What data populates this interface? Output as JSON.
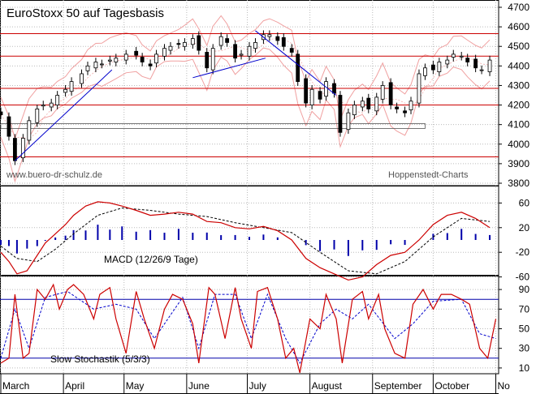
{
  "chart_data": [
    {
      "type": "line",
      "title": "EuroStoxx 50 auf Tagesbasis",
      "watermark_left": "www.buero-dr-schulz.de",
      "watermark_right": "Hoppenstedt-Charts",
      "ylim": [
        3800,
        4700
      ],
      "yticks": [
        "4700",
        "4600",
        "4500",
        "4400",
        "4300",
        "4200",
        "4100",
        "4000",
        "3900",
        "3800"
      ],
      "ytick_values": [
        4700,
        4600,
        4500,
        4400,
        4300,
        4200,
        4100,
        4000,
        3900,
        3800
      ],
      "horizontal_lines": [
        4565,
        4450,
        4285,
        4200,
        3935
      ],
      "trendlines": [
        {
          "from": [
            "2007-03-08",
            3915
          ],
          "to": [
            "2007-04-25",
            4380
          ]
        },
        {
          "from": [
            "2007-06-04",
            4340
          ],
          "to": [
            "2007-07-10",
            4440
          ]
        },
        {
          "from": [
            "2007-07-05",
            4580
          ],
          "to": [
            "2007-08-14",
            4250
          ]
        }
      ],
      "close_series": [
        [
          "2007-03-01",
          4150
        ],
        [
          "2007-03-05",
          4040
        ],
        [
          "2007-03-08",
          3915
        ],
        [
          "2007-03-12",
          4030
        ],
        [
          "2007-03-15",
          4120
        ],
        [
          "2007-03-19",
          4180
        ],
        [
          "2007-03-22",
          4200
        ],
        [
          "2007-03-26",
          4210
        ],
        [
          "2007-03-29",
          4250
        ],
        [
          "2007-04-02",
          4280
        ],
        [
          "2007-04-05",
          4320
        ],
        [
          "2007-04-10",
          4360
        ],
        [
          "2007-04-13",
          4400
        ],
        [
          "2007-04-17",
          4420
        ],
        [
          "2007-04-20",
          4410
        ],
        [
          "2007-04-24",
          4430
        ],
        [
          "2007-04-27",
          4440
        ],
        [
          "2007-05-02",
          4460
        ],
        [
          "2007-05-07",
          4455
        ],
        [
          "2007-05-10",
          4420
        ],
        [
          "2007-05-14",
          4400
        ],
        [
          "2007-05-17",
          4460
        ],
        [
          "2007-05-21",
          4490
        ],
        [
          "2007-05-24",
          4500
        ],
        [
          "2007-05-28",
          4510
        ],
        [
          "2007-05-31",
          4520
        ],
        [
          "2007-06-04",
          4540
        ],
        [
          "2007-06-07",
          4480
        ],
        [
          "2007-06-11",
          4390
        ],
        [
          "2007-06-14",
          4490
        ],
        [
          "2007-06-18",
          4550
        ],
        [
          "2007-06-21",
          4520
        ],
        [
          "2007-06-25",
          4440
        ],
        [
          "2007-06-28",
          4460
        ],
        [
          "2007-07-02",
          4500
        ],
        [
          "2007-07-05",
          4520
        ],
        [
          "2007-07-09",
          4560
        ],
        [
          "2007-07-12",
          4560
        ],
        [
          "2007-07-16",
          4530
        ],
        [
          "2007-07-19",
          4500
        ],
        [
          "2007-07-23",
          4470
        ],
        [
          "2007-07-26",
          4320
        ],
        [
          "2007-07-30",
          4210
        ],
        [
          "2007-08-02",
          4280
        ],
        [
          "2007-08-06",
          4230
        ],
        [
          "2007-08-09",
          4320
        ],
        [
          "2007-08-13",
          4260
        ],
        [
          "2007-08-16",
          4060
        ],
        [
          "2007-08-20",
          4160
        ],
        [
          "2007-08-23",
          4200
        ],
        [
          "2007-08-27",
          4220
        ],
        [
          "2007-08-30",
          4180
        ],
        [
          "2007-09-03",
          4240
        ],
        [
          "2007-09-06",
          4300
        ],
        [
          "2007-09-10",
          4200
        ],
        [
          "2007-09-13",
          4180
        ],
        [
          "2007-09-17",
          4160
        ],
        [
          "2007-09-20",
          4220
        ],
        [
          "2007-09-24",
          4360
        ],
        [
          "2007-09-27",
          4390
        ],
        [
          "2007-10-01",
          4380
        ],
        [
          "2007-10-04",
          4420
        ],
        [
          "2007-10-08",
          4430
        ],
        [
          "2007-10-11",
          4460
        ],
        [
          "2007-10-15",
          4450
        ],
        [
          "2007-10-18",
          4420
        ],
        [
          "2007-10-22",
          4390
        ],
        [
          "2007-10-25",
          4380
        ],
        [
          "2007-10-29",
          4430
        ]
      ]
    },
    {
      "type": "line",
      "title": "MACD (12/26/9 Tage)",
      "ylim": [
        -90,
        90
      ],
      "yticks": [
        "60",
        "20",
        "-20",
        "-60"
      ],
      "ytick_values": [
        60,
        20,
        -20,
        -60
      ],
      "series": [
        {
          "values": [
            [
              "2007-03-01",
              -20
            ],
            [
              "2007-03-05",
              -35
            ],
            [
              "2007-03-09",
              -55
            ],
            [
              "2007-03-14",
              -50
            ],
            [
              "2007-03-19",
              -25
            ],
            [
              "2007-03-23",
              -5
            ],
            [
              "2007-03-28",
              10
            ],
            [
              "2007-04-02",
              25
            ],
            [
              "2007-04-06",
              40
            ],
            [
              "2007-04-12",
              55
            ],
            [
              "2007-04-18",
              62
            ],
            [
              "2007-04-24",
              60
            ],
            [
              "2007-04-30",
              55
            ],
            [
              "2007-05-07",
              48
            ],
            [
              "2007-05-14",
              40
            ],
            [
              "2007-05-21",
              42
            ],
            [
              "2007-05-28",
              45
            ],
            [
              "2007-06-04",
              42
            ],
            [
              "2007-06-11",
              30
            ],
            [
              "2007-06-18",
              28
            ],
            [
              "2007-06-25",
              20
            ],
            [
              "2007-07-02",
              18
            ],
            [
              "2007-07-09",
              22
            ],
            [
              "2007-07-16",
              15
            ],
            [
              "2007-07-23",
              0
            ],
            [
              "2007-07-30",
              -30
            ],
            [
              "2007-08-06",
              -45
            ],
            [
              "2007-08-13",
              -55
            ],
            [
              "2007-08-20",
              -65
            ],
            [
              "2007-08-27",
              -60
            ],
            [
              "2007-09-03",
              -40
            ],
            [
              "2007-09-10",
              -25
            ],
            [
              "2007-09-17",
              -20
            ],
            [
              "2007-09-24",
              0
            ],
            [
              "2007-10-01",
              25
            ],
            [
              "2007-10-08",
              40
            ],
            [
              "2007-10-15",
              45
            ],
            [
              "2007-10-22",
              35
            ],
            [
              "2007-10-29",
              20
            ]
          ]
        },
        {
          "values": [
            [
              "2007-03-01",
              -10
            ],
            [
              "2007-03-09",
              -30
            ],
            [
              "2007-03-19",
              -35
            ],
            [
              "2007-03-28",
              -15
            ],
            [
              "2007-04-06",
              10
            ],
            [
              "2007-04-18",
              40
            ],
            [
              "2007-04-30",
              52
            ],
            [
              "2007-05-14",
              48
            ],
            [
              "2007-05-28",
              42
            ],
            [
              "2007-06-11",
              38
            ],
            [
              "2007-06-25",
              28
            ],
            [
              "2007-07-09",
              20
            ],
            [
              "2007-07-23",
              12
            ],
            [
              "2007-08-06",
              -20
            ],
            [
              "2007-08-20",
              -50
            ],
            [
              "2007-09-03",
              -55
            ],
            [
              "2007-09-17",
              -35
            ],
            [
              "2007-10-01",
              5
            ],
            [
              "2007-10-15",
              35
            ],
            [
              "2007-10-29",
              30
            ]
          ]
        }
      ]
    },
    {
      "type": "line",
      "title": "Slow Stochastik (5/3/3)",
      "ylim": [
        0,
        100
      ],
      "yticks": [
        "90",
        "70",
        "50",
        "30",
        "10"
      ],
      "ytick_values": [
        90,
        70,
        50,
        30,
        10
      ],
      "horizontal_lines": [
        80,
        20
      ],
      "series": [
        {
          "values": [
            [
              "2007-03-01",
              15
            ],
            [
              "2007-03-05",
              20
            ],
            [
              "2007-03-08",
              85
            ],
            [
              "2007-03-12",
              20
            ],
            [
              "2007-03-15",
              25
            ],
            [
              "2007-03-19",
              90
            ],
            [
              "2007-03-23",
              80
            ],
            [
              "2007-03-27",
              95
            ],
            [
              "2007-03-30",
              70
            ],
            [
              "2007-04-03",
              90
            ],
            [
              "2007-04-06",
              95
            ],
            [
              "2007-04-11",
              85
            ],
            [
              "2007-04-16",
              60
            ],
            [
              "2007-04-19",
              85
            ],
            [
              "2007-04-24",
              92
            ],
            [
              "2007-04-27",
              60
            ],
            [
              "2007-05-02",
              25
            ],
            [
              "2007-05-07",
              88
            ],
            [
              "2007-05-11",
              60
            ],
            [
              "2007-05-16",
              30
            ],
            [
              "2007-05-21",
              70
            ],
            [
              "2007-05-25",
              85
            ],
            [
              "2007-05-30",
              80
            ],
            [
              "2007-06-04",
              55
            ],
            [
              "2007-06-07",
              15
            ],
            [
              "2007-06-12",
              92
            ],
            [
              "2007-06-15",
              85
            ],
            [
              "2007-06-20",
              40
            ],
            [
              "2007-06-25",
              92
            ],
            [
              "2007-06-28",
              60
            ],
            [
              "2007-07-03",
              30
            ],
            [
              "2007-07-06",
              88
            ],
            [
              "2007-07-11",
              92
            ],
            [
              "2007-07-16",
              60
            ],
            [
              "2007-07-20",
              20
            ],
            [
              "2007-07-24",
              30
            ],
            [
              "2007-07-27",
              5
            ],
            [
              "2007-08-01",
              60
            ],
            [
              "2007-08-06",
              50
            ],
            [
              "2007-08-09",
              85
            ],
            [
              "2007-08-14",
              60
            ],
            [
              "2007-08-17",
              15
            ],
            [
              "2007-08-22",
              80
            ],
            [
              "2007-08-27",
              88
            ],
            [
              "2007-08-30",
              60
            ],
            [
              "2007-09-04",
              85
            ],
            [
              "2007-09-07",
              50
            ],
            [
              "2007-09-12",
              25
            ],
            [
              "2007-09-17",
              20
            ],
            [
              "2007-09-21",
              75
            ],
            [
              "2007-09-26",
              90
            ],
            [
              "2007-10-01",
              70
            ],
            [
              "2007-10-05",
              85
            ],
            [
              "2007-10-10",
              85
            ],
            [
              "2007-10-15",
              80
            ],
            [
              "2007-10-19",
              75
            ],
            [
              "2007-10-24",
              30
            ],
            [
              "2007-10-28",
              20
            ],
            [
              "2007-11-01",
              60
            ]
          ]
        },
        {
          "values": [
            [
              "2007-03-01",
              20
            ],
            [
              "2007-03-08",
              70
            ],
            [
              "2007-03-15",
              30
            ],
            [
              "2007-03-23",
              82
            ],
            [
              "2007-04-03",
              88
            ],
            [
              "2007-04-16",
              70
            ],
            [
              "2007-04-27",
              75
            ],
            [
              "2007-05-07",
              70
            ],
            [
              "2007-05-16",
              40
            ],
            [
              "2007-05-30",
              82
            ],
            [
              "2007-06-07",
              30
            ],
            [
              "2007-06-15",
              85
            ],
            [
              "2007-06-25",
              85
            ],
            [
              "2007-07-03",
              40
            ],
            [
              "2007-07-11",
              85
            ],
            [
              "2007-07-20",
              40
            ],
            [
              "2007-07-27",
              15
            ],
            [
              "2007-08-06",
              55
            ],
            [
              "2007-08-14",
              70
            ],
            [
              "2007-08-22",
              60
            ],
            [
              "2007-08-30",
              75
            ],
            [
              "2007-09-12",
              40
            ],
            [
              "2007-09-21",
              55
            ],
            [
              "2007-10-01",
              78
            ],
            [
              "2007-10-15",
              80
            ],
            [
              "2007-10-24",
              45
            ],
            [
              "2007-11-01",
              40
            ]
          ]
        }
      ]
    }
  ],
  "x_axis": {
    "date_range": [
      "2007-03-01",
      "2007-11-02"
    ],
    "months": [
      {
        "label": "March",
        "start": "2007-03-01"
      },
      {
        "label": "April",
        "start": "2007-04-01"
      },
      {
        "label": "May",
        "start": "2007-05-01"
      },
      {
        "label": "June",
        "start": "2007-06-01"
      },
      {
        "label": "July",
        "start": "2007-07-01"
      },
      {
        "label": "August",
        "start": "2007-08-01"
      },
      {
        "label": "September",
        "start": "2007-09-01"
      },
      {
        "label": "October",
        "start": "2007-10-01"
      },
      {
        "label": "No",
        "start": "2007-11-01"
      }
    ]
  },
  "colors": {
    "price": "#000000",
    "bollinger": "#f0a0a0",
    "support_resistance": "#cc0000",
    "trendline": "#0000cc",
    "macd": "#cc0000",
    "signal": "#000000",
    "histogram": "#0000aa",
    "stoch_k": "#cc0000",
    "stoch_d": "#0000cc",
    "stoch_levels": "#0000aa"
  }
}
